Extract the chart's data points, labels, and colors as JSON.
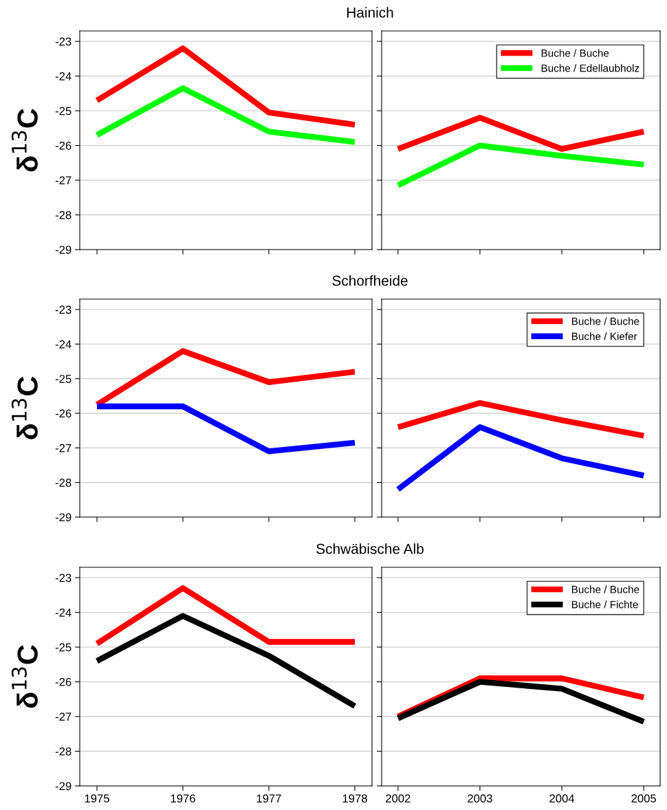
{
  "chart_data": [
    {
      "type": "line",
      "title": "Hainich",
      "ylabel": "δ$^{13}$C",
      "x": [
        1975,
        1976,
        1977,
        1978
      ],
      "xlim": [
        1974.8,
        1978.2
      ],
      "xticks": [
        1975,
        1976,
        1977,
        1978
      ],
      "ylim": [
        -29,
        -22.7
      ],
      "yticks": [
        -29,
        -28,
        -27,
        -26,
        -25,
        -24,
        -23
      ],
      "grid": "y",
      "tick_labels": "y",
      "marker": "none",
      "line_style": "solid",
      "series": [
        {
          "color": "#ff0000",
          "values": [
            -24.7,
            -23.2,
            -25.05,
            -25.4
          ]
        },
        {
          "color": "#00ff00",
          "values": [
            -25.7,
            -24.35,
            -25.6,
            -25.9
          ]
        }
      ]
    },
    {
      "type": "line",
      "x": [
        2002,
        2003,
        2004,
        2005
      ],
      "xlim": [
        2001.8,
        2005.2
      ],
      "xticks": [
        2002,
        2003,
        2004,
        2005
      ],
      "ylim": [
        -29,
        -22.7
      ],
      "yticks": [
        -29,
        -28,
        -27,
        -26,
        -25,
        -24,
        -23
      ],
      "grid": "y",
      "tick_labels": false,
      "legend": "top right",
      "marker": "none",
      "line_style": "solid",
      "series": [
        {
          "name": "Buche / Buche",
          "color": "#ff0000",
          "values": [
            -26.1,
            -25.2,
            -26.1,
            -25.6
          ]
        },
        {
          "name": "Buche / Edellaubholz",
          "color": "#00ff00",
          "values": [
            -27.15,
            -26.0,
            -26.3,
            -26.55
          ]
        }
      ]
    },
    {
      "type": "line",
      "title": "Schorfheide",
      "ylabel": "δ$^{13}$C",
      "x": [
        1975,
        1976,
        1977,
        1978
      ],
      "xlim": [
        1974.8,
        1978.2
      ],
      "xticks": [
        1975,
        1976,
        1977,
        1978
      ],
      "ylim": [
        -29,
        -22.7
      ],
      "yticks": [
        -29,
        -28,
        -27,
        -26,
        -25,
        -24,
        -23
      ],
      "grid": "y",
      "tick_labels": "y",
      "marker": "none",
      "line_style": "solid",
      "series": [
        {
          "color": "#ff0000",
          "values": [
            -25.75,
            -24.2,
            -25.1,
            -24.8
          ]
        },
        {
          "color": "#0000ff",
          "values": [
            -25.8,
            -25.8,
            -27.1,
            -26.85
          ]
        }
      ]
    },
    {
      "type": "line",
      "x": [
        2002,
        2003,
        2004,
        2005
      ],
      "xlim": [
        2001.8,
        2005.2
      ],
      "xticks": [
        2002,
        2003,
        2004,
        2005
      ],
      "ylim": [
        -29,
        -22.7
      ],
      "yticks": [
        -29,
        -28,
        -27,
        -26,
        -25,
        -24,
        -23
      ],
      "grid": "y",
      "tick_labels": false,
      "legend": "top right",
      "marker": "none",
      "line_style": "solid",
      "series": [
        {
          "name": "Buche / Buche",
          "color": "#ff0000",
          "values": [
            -26.4,
            -25.7,
            -26.2,
            -26.65
          ]
        },
        {
          "name": "Buche / Kiefer",
          "color": "#0000ff",
          "values": [
            -28.2,
            -26.4,
            -27.3,
            -27.8
          ]
        }
      ]
    },
    {
      "type": "line",
      "title": "Schwäbische Alb",
      "ylabel": "δ$^{13}$C",
      "x": [
        1975,
        1976,
        1977,
        1978
      ],
      "xlim": [
        1974.8,
        1978.2
      ],
      "xticks": [
        1975,
        1976,
        1977,
        1978
      ],
      "ylim": [
        -29,
        -22.7
      ],
      "yticks": [
        -29,
        -28,
        -27,
        -26,
        -25,
        -24,
        -23
      ],
      "grid": "y",
      "marker": "none",
      "line_style": "solid",
      "series": [
        {
          "color": "#ff0000",
          "values": [
            -24.9,
            -23.3,
            -24.85,
            -24.85
          ]
        },
        {
          "color": "#000000",
          "values": [
            -25.4,
            -24.1,
            -25.25,
            -26.7
          ]
        }
      ]
    },
    {
      "type": "line",
      "x": [
        2002,
        2003,
        2004,
        2005
      ],
      "xlim": [
        2001.8,
        2005.2
      ],
      "xticks": [
        2002,
        2003,
        2004,
        2005
      ],
      "ylim": [
        -29,
        -22.7
      ],
      "yticks": [
        -29,
        -28,
        -27,
        -26,
        -25,
        -24,
        -23
      ],
      "grid": "y",
      "tick_labels": "x",
      "legend": "top right",
      "marker": "none",
      "line_style": "solid",
      "series": [
        {
          "name": "Buche / Buche",
          "color": "#ff0000",
          "values": [
            -27.0,
            -25.9,
            -25.9,
            -26.45
          ]
        },
        {
          "name": "Buche / Fichte",
          "color": "#000000",
          "values": [
            -27.05,
            -26.0,
            -26.2,
            -27.15
          ]
        }
      ]
    }
  ]
}
